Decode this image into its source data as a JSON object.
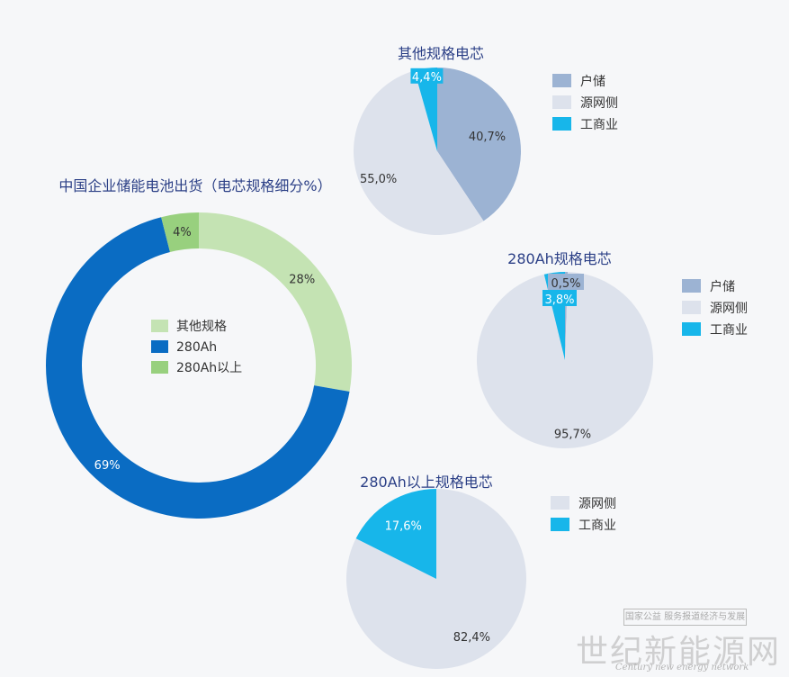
{
  "colors": {
    "other_spec": "#c4e3b3",
    "ah280": "#0a6cc3",
    "ah280_plus": "#98d07e",
    "household": "#9cb3d3",
    "source_grid": "#dde2ec",
    "commercial": "#17b6ea",
    "title": "#2b3f86"
  },
  "chart_data": [
    {
      "type": "donut",
      "title": "中国企业储能电池出货（电芯规格细分%）",
      "categories": [
        "其他规格",
        "280Ah",
        "280Ah以上"
      ],
      "values": [
        28,
        69,
        4
      ],
      "labels": [
        "28%",
        "69%",
        "4%"
      ],
      "legend_position": "center"
    },
    {
      "type": "pie",
      "title": "其他规格电芯",
      "categories": [
        "户储",
        "源网侧",
        "工商业"
      ],
      "values": [
        40.7,
        55.0,
        4.4
      ],
      "labels": [
        "40,7%",
        "55,0%",
        "4,4%"
      ],
      "legend_position": "right"
    },
    {
      "type": "pie",
      "title": "280Ah规格电芯",
      "categories": [
        "户储",
        "源网侧",
        "工商业"
      ],
      "values": [
        0.5,
        95.7,
        3.8
      ],
      "labels": [
        "0,5%",
        "95,7%",
        "3,8%"
      ],
      "legend_position": "right"
    },
    {
      "type": "pie",
      "title": "280Ah以上规格电芯",
      "categories": [
        "源网侧",
        "工商业"
      ],
      "values": [
        82.4,
        17.6
      ],
      "labels": [
        "82,4%",
        "17,6%"
      ],
      "legend_position": "right"
    }
  ],
  "watermark": {
    "top": "国家公益 服务报道经济与发展",
    "main": "世纪新能源网",
    "sub": "Century new energy network"
  }
}
